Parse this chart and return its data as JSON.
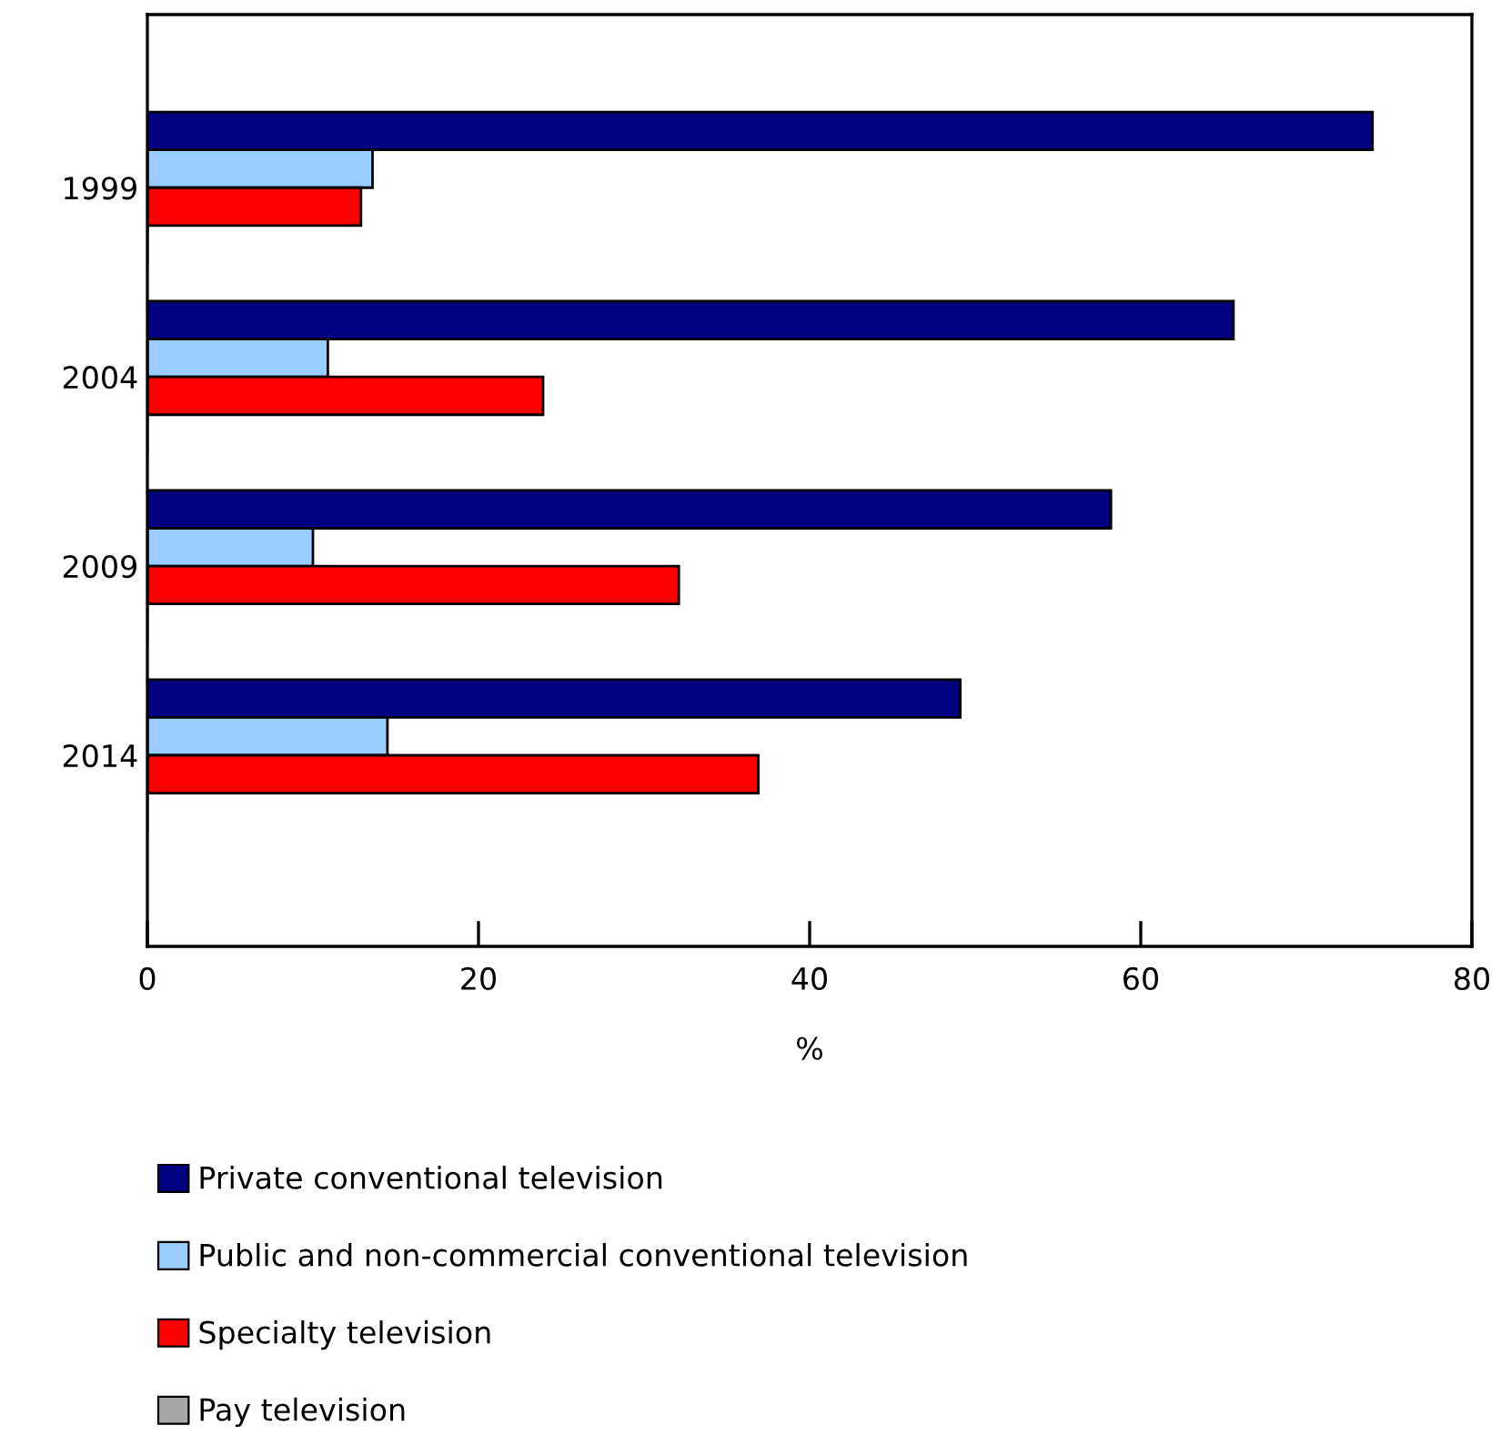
{
  "chart_data": {
    "type": "bar",
    "orientation": "horizontal",
    "xlabel": "%",
    "categories": [
      "1999",
      "2004",
      "2009",
      "2014"
    ],
    "series": [
      {
        "name": "Private conventional television",
        "color": "#000080",
        "values": [
          74.0,
          65.6,
          58.2,
          49.1
        ]
      },
      {
        "name": "Public and non-commercial conventional television",
        "color": "#99ccff",
        "values": [
          13.6,
          10.9,
          10.0,
          14.5
        ]
      },
      {
        "name": "Specialty television",
        "color": "#ff0000",
        "values": [
          12.9,
          23.9,
          32.1,
          36.9
        ]
      },
      {
        "name": "Pay television",
        "color": "#a6a6a6",
        "values": [
          null,
          null,
          null,
          null
        ]
      }
    ],
    "xlim": [
      0,
      80
    ],
    "xticks": [
      0,
      20,
      40,
      60,
      80
    ],
    "grid": false,
    "legend": "bottom"
  }
}
